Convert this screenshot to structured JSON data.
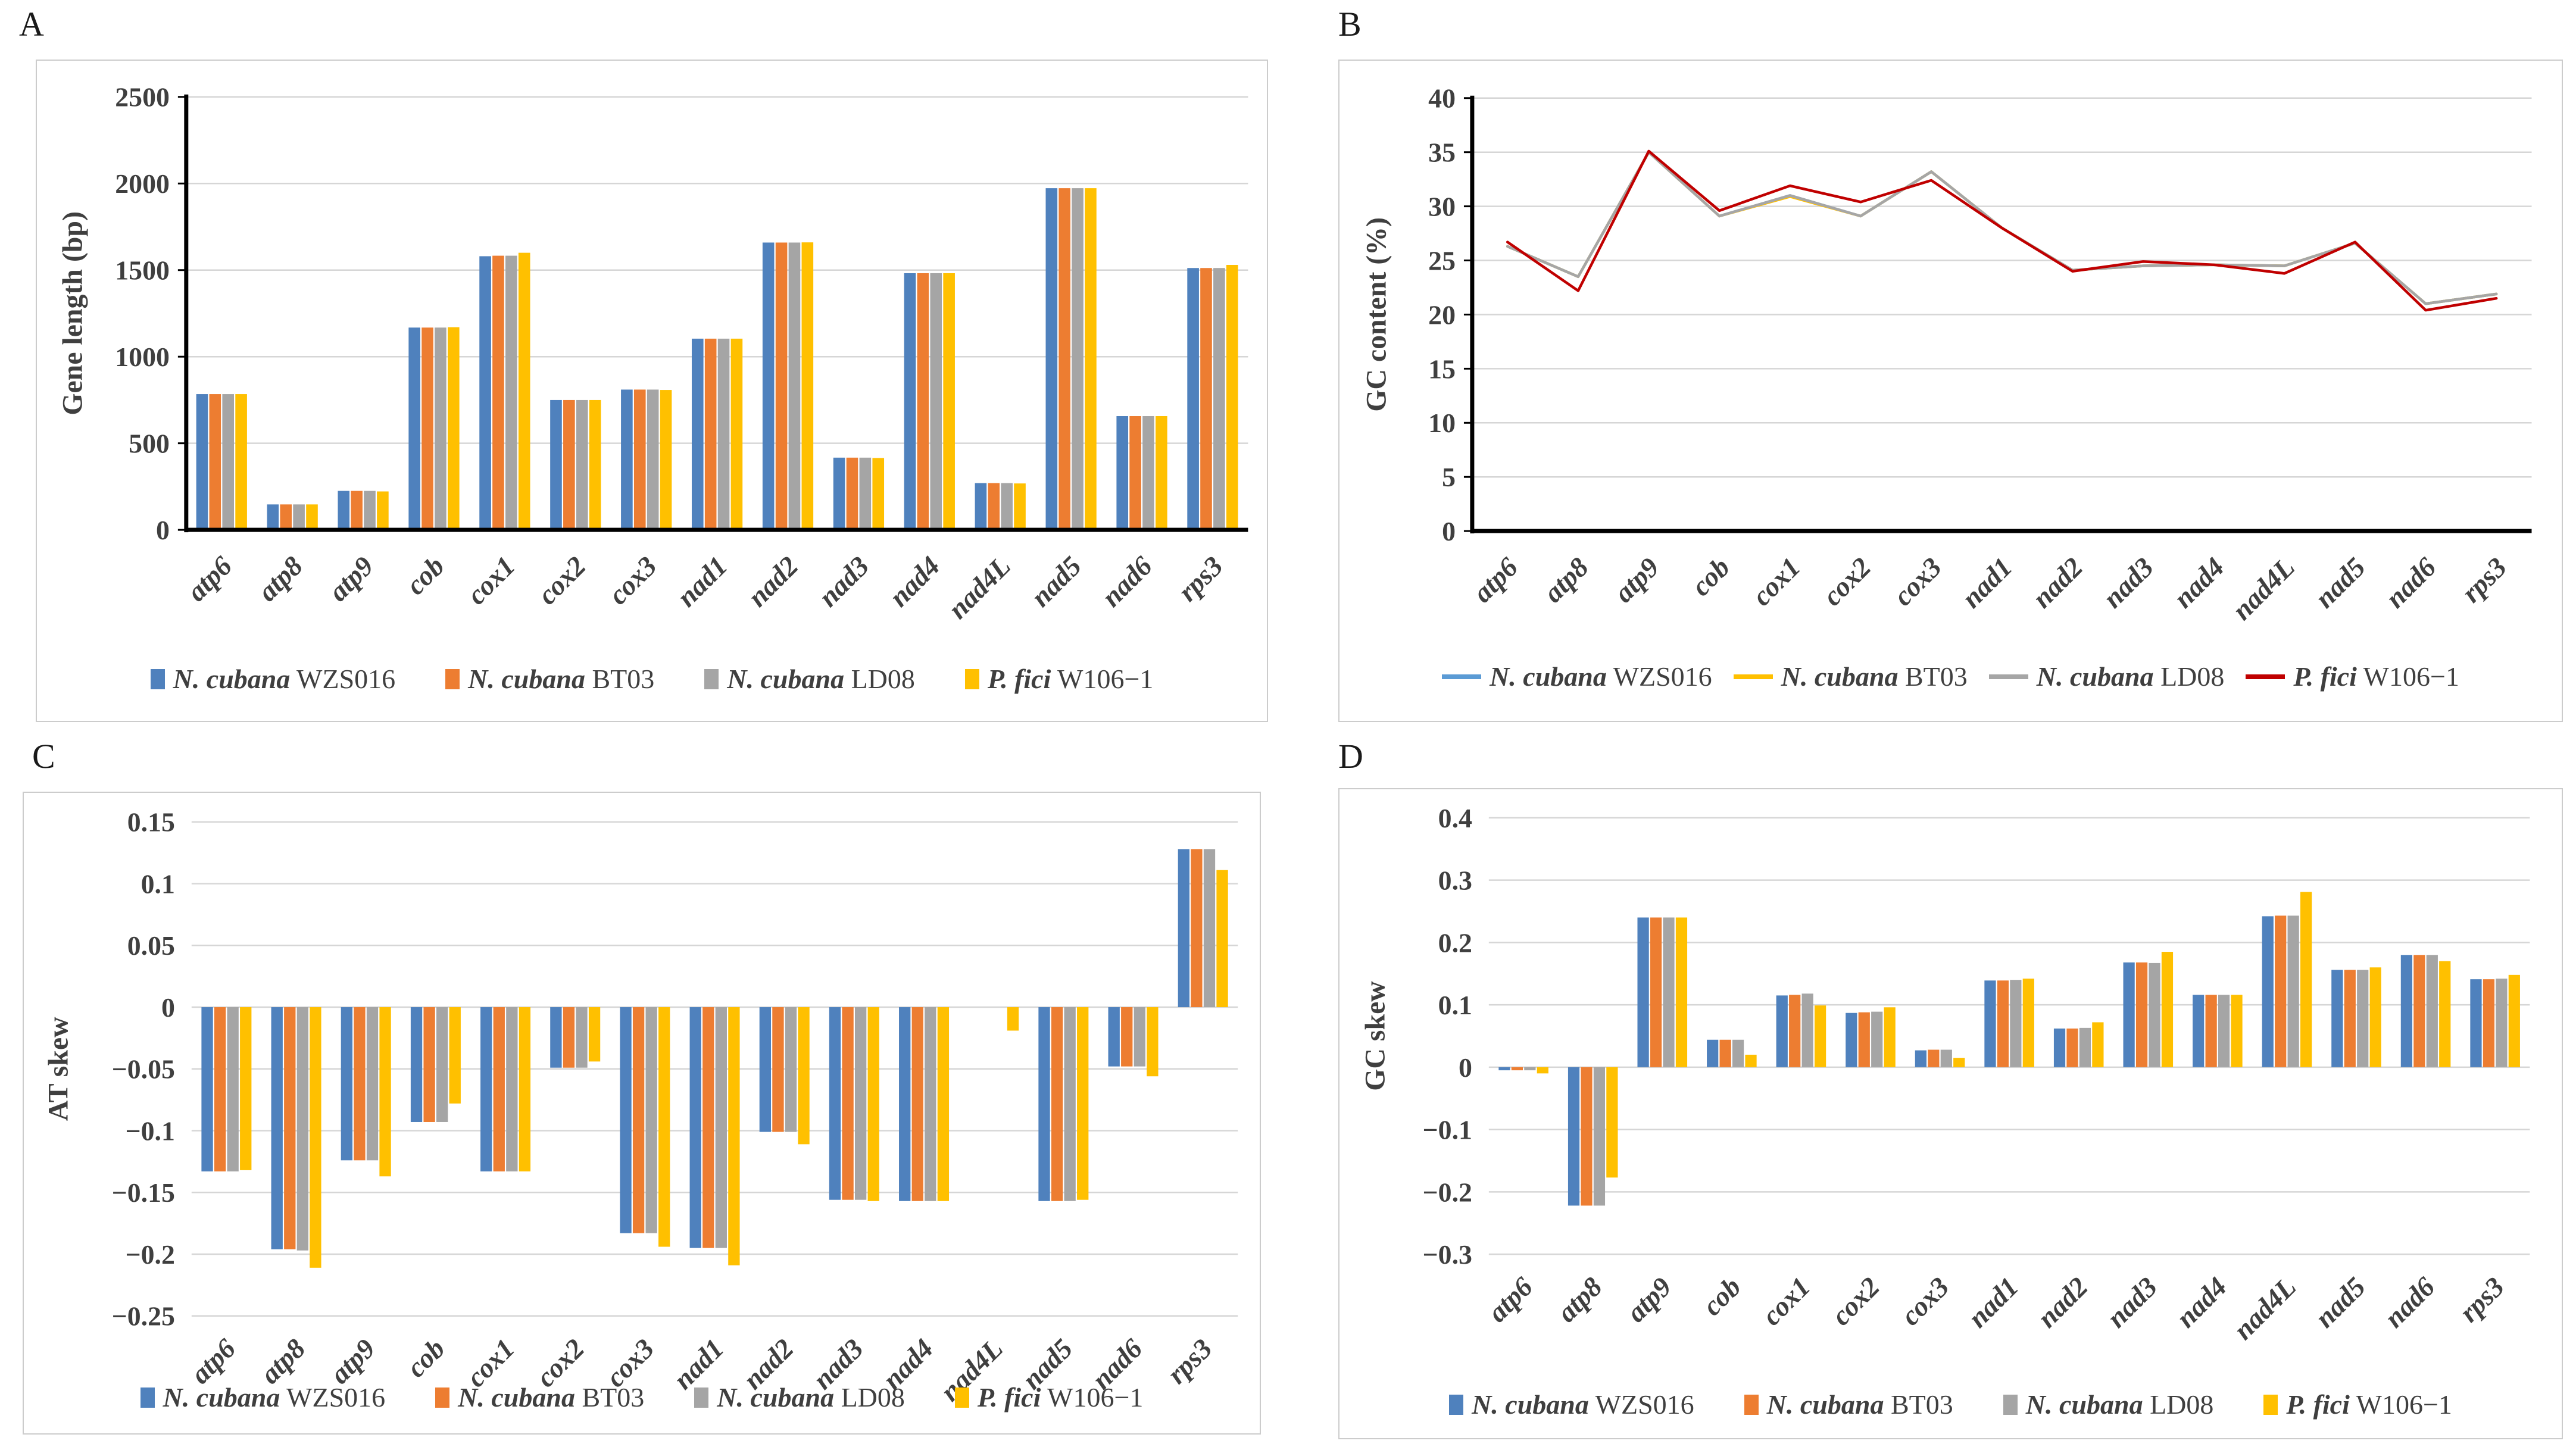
{
  "figure": {
    "panel_letters": [
      "A",
      "B",
      "C",
      "D"
    ]
  },
  "chart_data": [
    {
      "panel": "A",
      "type": "bar",
      "ylabel": "Gene length (bp)",
      "ylim": [
        0,
        2500
      ],
      "grid": true,
      "legend_position": "bottom",
      "ytick_values": [
        0,
        500,
        1000,
        1500,
        2000,
        2500
      ],
      "ytick_labels": [
        "0",
        "500",
        "1000",
        "1500",
        "2000",
        "2500"
      ],
      "categories": [
        "atp6",
        "atp8",
        "atp9",
        "cob",
        "cox1",
        "cox2",
        "cox3",
        "nad1",
        "nad2",
        "nad3",
        "nad4",
        "nad4L",
        "nad5",
        "nad6",
        "rps3"
      ],
      "series": [
        {
          "name": "N. cubana WZS016",
          "name_italic": "N. cubana",
          "name_rest": " WZS016",
          "color": "#4F81BD",
          "values": [
            784,
            147,
            225,
            1168,
            1580,
            750,
            810,
            1104,
            1659,
            417,
            1482,
            270,
            1973,
            657,
            1512
          ]
        },
        {
          "name": "N. cubana BT03",
          "name_italic": "N. cubana",
          "name_rest": " BT03",
          "color": "#ED7D31",
          "values": [
            784,
            147,
            225,
            1168,
            1583,
            750,
            810,
            1104,
            1659,
            417,
            1482,
            270,
            1973,
            657,
            1512
          ]
        },
        {
          "name": "N. cubana LD08",
          "name_italic": "N. cubana",
          "name_rest": " LD08",
          "color": "#A5A5A5",
          "values": [
            784,
            147,
            225,
            1168,
            1583,
            750,
            810,
            1104,
            1659,
            417,
            1482,
            270,
            1973,
            657,
            1512
          ]
        },
        {
          "name": "P. fici W106−1",
          "name_italic": "P. fici",
          "name_rest": " W106−1",
          "color": "#FFC000",
          "values": [
            784,
            147,
            222,
            1170,
            1600,
            750,
            808,
            1104,
            1660,
            415,
            1482,
            268,
            1973,
            657,
            1530
          ]
        }
      ]
    },
    {
      "panel": "B",
      "type": "line",
      "ylabel": "GC content (%)",
      "ylim": [
        0,
        40
      ],
      "grid": true,
      "legend_position": "bottom",
      "ytick_values": [
        0,
        5,
        10,
        15,
        20,
        25,
        30,
        35,
        40
      ],
      "ytick_labels": [
        "0",
        "5",
        "10",
        "15",
        "20",
        "25",
        "30",
        "35",
        "40"
      ],
      "categories": [
        "atp6",
        "atp8",
        "atp9",
        "cob",
        "cox1",
        "cox2",
        "cox3",
        "nad1",
        "nad2",
        "nad3",
        "nad4",
        "nad4L",
        "nad5",
        "nad6",
        "rps3"
      ],
      "series": [
        {
          "name": "N. cubana WZS016",
          "name_italic": "N. cubana",
          "name_rest": " WZS016",
          "color": "#5B9BD5",
          "values": [
            26.3,
            23.5,
            35.0,
            29.1,
            31.0,
            29.1,
            33.2,
            28.0,
            24.1,
            24.5,
            24.6,
            24.5,
            26.6,
            21.0,
            21.9
          ]
        },
        {
          "name": "N. cubana BT03",
          "name_italic": "N. cubana",
          "name_rest": " BT03",
          "color": "#FFC000",
          "values": [
            26.3,
            23.5,
            35.0,
            29.1,
            30.9,
            29.1,
            33.2,
            28.0,
            24.1,
            24.5,
            24.6,
            24.5,
            26.6,
            21.0,
            21.9
          ]
        },
        {
          "name": "N. cubana LD08",
          "name_italic": "N. cubana",
          "name_rest": " LD08",
          "color": "#A6A6A6",
          "values": [
            26.3,
            23.5,
            35.0,
            29.1,
            31.0,
            29.1,
            33.2,
            28.0,
            24.1,
            24.5,
            24.6,
            24.5,
            26.6,
            21.0,
            21.9
          ]
        },
        {
          "name": "P. fici W106−1",
          "name_italic": "P. fici",
          "name_rest": " W106−1",
          "color": "#C00000",
          "values": [
            26.7,
            22.2,
            35.1,
            29.6,
            31.9,
            30.4,
            32.4,
            28.0,
            24.0,
            24.9,
            24.6,
            23.8,
            26.7,
            20.4,
            21.5
          ]
        }
      ]
    },
    {
      "panel": "C",
      "type": "bar",
      "ylabel": "AT skew",
      "ylim": [
        -0.25,
        0.15
      ],
      "grid": true,
      "legend_position": "bottom",
      "ytick_values": [
        -0.25,
        -0.2,
        -0.15,
        -0.1,
        -0.05,
        0,
        0.05,
        0.1,
        0.15
      ],
      "ytick_labels": [
        "−0.25",
        "−0.2",
        "−0.15",
        "−0.1",
        "−0.05",
        "0",
        "0.05",
        "0.1",
        "0.15"
      ],
      "categories": [
        "atp6",
        "atp8",
        "atp9",
        "cob",
        "cox1",
        "cox2",
        "cox3",
        "nad1",
        "nad2",
        "nad3",
        "nad4",
        "nad4L",
        "nad5",
        "nad6",
        "rps3"
      ],
      "series": [
        {
          "name": "N. cubana WZS016",
          "name_italic": "N. cubana",
          "name_rest": " WZS016",
          "color": "#4F81BD",
          "values": [
            -0.133,
            -0.196,
            -0.124,
            -0.093,
            -0.133,
            -0.049,
            -0.183,
            -0.195,
            -0.101,
            -0.156,
            -0.157,
            0,
            -0.157,
            -0.048,
            0.128
          ]
        },
        {
          "name": "N. cubana BT03",
          "name_italic": "N. cubana",
          "name_rest": " BT03",
          "color": "#ED7D31",
          "values": [
            -0.133,
            -0.196,
            -0.124,
            -0.093,
            -0.133,
            -0.049,
            -0.183,
            -0.195,
            -0.101,
            -0.156,
            -0.157,
            0,
            -0.157,
            -0.048,
            0.128
          ]
        },
        {
          "name": "N. cubana LD08",
          "name_italic": "N. cubana",
          "name_rest": " LD08",
          "color": "#A5A5A5",
          "values": [
            -0.133,
            -0.197,
            -0.124,
            -0.093,
            -0.133,
            -0.049,
            -0.183,
            -0.195,
            -0.101,
            -0.156,
            -0.157,
            0,
            -0.157,
            -0.048,
            0.128
          ]
        },
        {
          "name": "P. fici W106−1",
          "name_italic": "P. fici",
          "name_rest": " W106−1",
          "color": "#FFC000",
          "values": [
            -0.132,
            -0.211,
            -0.137,
            -0.078,
            -0.133,
            -0.044,
            -0.194,
            -0.209,
            -0.111,
            -0.157,
            -0.157,
            -0.019,
            -0.156,
            -0.056,
            0.111
          ]
        }
      ]
    },
    {
      "panel": "D",
      "type": "bar",
      "ylabel": "GC skew",
      "ylim": [
        -0.3,
        0.4
      ],
      "grid": true,
      "legend_position": "bottom",
      "ytick_values": [
        -0.3,
        -0.2,
        -0.1,
        0,
        0.1,
        0.2,
        0.3,
        0.4
      ],
      "ytick_labels": [
        "−0.3",
        "−0.2",
        "−0.1",
        "0",
        "0.1",
        "0.2",
        "0.3",
        "0.4"
      ],
      "categories": [
        "atp6",
        "atp8",
        "atp9",
        "cob",
        "cox1",
        "cox2",
        "cox3",
        "nad1",
        "nad2",
        "nad3",
        "nad4",
        "nad4L",
        "nad5",
        "nad6",
        "rps3"
      ],
      "series": [
        {
          "name": "N. cubana WZS016",
          "name_italic": "N. cubana",
          "name_rest": " WZS016",
          "color": "#4F81BD",
          "values": [
            -0.005,
            -0.222,
            0.24,
            0.044,
            0.115,
            0.087,
            0.027,
            0.139,
            0.062,
            0.168,
            0.116,
            0.242,
            0.156,
            0.18,
            0.141
          ]
        },
        {
          "name": "N. cubana BT03",
          "name_italic": "N. cubana",
          "name_rest": " BT03",
          "color": "#ED7D31",
          "values": [
            -0.005,
            -0.222,
            0.24,
            0.044,
            0.116,
            0.088,
            0.028,
            0.139,
            0.062,
            0.168,
            0.116,
            0.243,
            0.156,
            0.18,
            0.141
          ]
        },
        {
          "name": "N. cubana LD08",
          "name_italic": "N. cubana",
          "name_rest": " LD08",
          "color": "#A5A5A5",
          "values": [
            -0.005,
            -0.222,
            0.24,
            0.044,
            0.118,
            0.089,
            0.028,
            0.14,
            0.063,
            0.167,
            0.116,
            0.243,
            0.156,
            0.18,
            0.142
          ]
        },
        {
          "name": "P. fici W106−1",
          "name_italic": "P. fici",
          "name_rest": " W106−1",
          "color": "#FFC000",
          "values": [
            -0.01,
            -0.177,
            0.24,
            0.02,
            0.099,
            0.096,
            0.015,
            0.142,
            0.072,
            0.185,
            0.116,
            0.281,
            0.16,
            0.17,
            0.148
          ]
        }
      ]
    }
  ],
  "style": {
    "grid_color": "#D6D6D6",
    "axis_color": "#000000",
    "text_color": "#3F3F3F",
    "panel_border_color": "#CCCCCC",
    "background": "#FFFFFF"
  }
}
